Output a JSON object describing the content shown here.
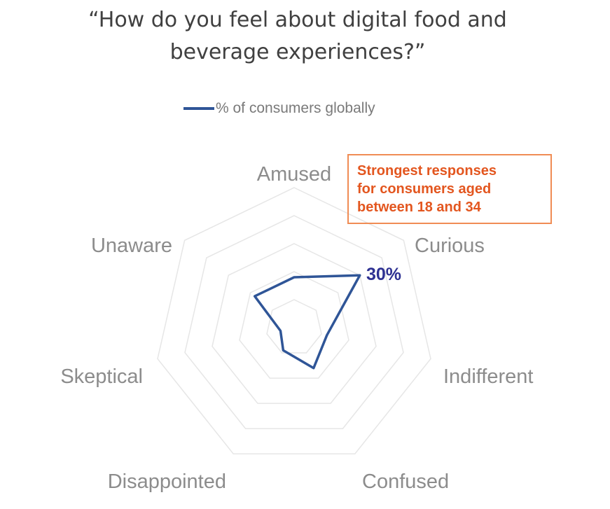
{
  "chart_data": {
    "type": "radar",
    "title_lines": [
      "“How do you feel about digital food and",
      "beverage experiences?”"
    ],
    "categories": [
      "Amused",
      "Curious",
      "Indifferent",
      "Confused",
      "Disappointed",
      "Skeptical",
      "Unaware"
    ],
    "series": [
      {
        "name": "% of consumers globally",
        "values": [
          18,
          30,
          12,
          16,
          9,
          5,
          18
        ],
        "color": "#2f5597"
      }
    ],
    "rlim": [
      0,
      50
    ],
    "grid_levels": [
      10,
      20,
      30,
      40,
      50
    ],
    "data_label": "30%",
    "annotation_lines": [
      "Strongest responses",
      "for consumers aged",
      "between 18 and 34"
    ],
    "annotation_color": "#e3561f",
    "legend": "top"
  }
}
